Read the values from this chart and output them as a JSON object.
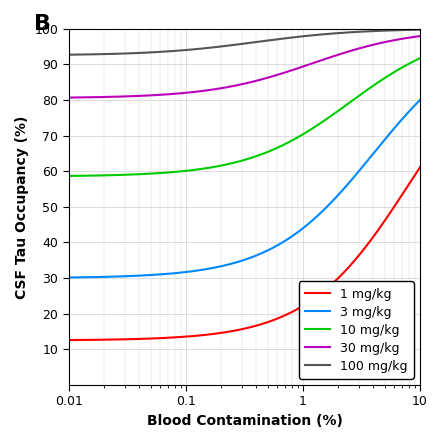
{
  "title": "B",
  "xlabel": "Blood Contamination (%)",
  "ylabel": "CSF Tau Occupancy (%)",
  "xlim": [
    0.01,
    10
  ],
  "ylim": [
    0,
    100
  ],
  "yticks": [
    10,
    20,
    30,
    40,
    50,
    60,
    70,
    80,
    90,
    100
  ],
  "doses": [
    {
      "label": "1 mg/kg",
      "color": "#ff0000",
      "base_occ": 12.5,
      "ec50": 8.0,
      "n": 1.0
    },
    {
      "label": "3 mg/kg",
      "color": "#0088ff",
      "base_occ": 30.0,
      "ec50": 4.0,
      "n": 1.0
    },
    {
      "label": "10 mg/kg",
      "color": "#00cc00",
      "base_occ": 58.5,
      "ec50": 2.5,
      "n": 1.0
    },
    {
      "label": "30 mg/kg",
      "color": "#bb00bb",
      "base_occ": 80.5,
      "ec50": 1.2,
      "n": 1.0
    },
    {
      "label": "100 mg/kg",
      "color": "#555555",
      "base_occ": 92.5,
      "ec50": 0.4,
      "n": 1.0
    }
  ],
  "background_color": "#ffffff",
  "grid_color": "#d0d0d0",
  "legend_fontsize": 9,
  "linewidth": 1.5
}
